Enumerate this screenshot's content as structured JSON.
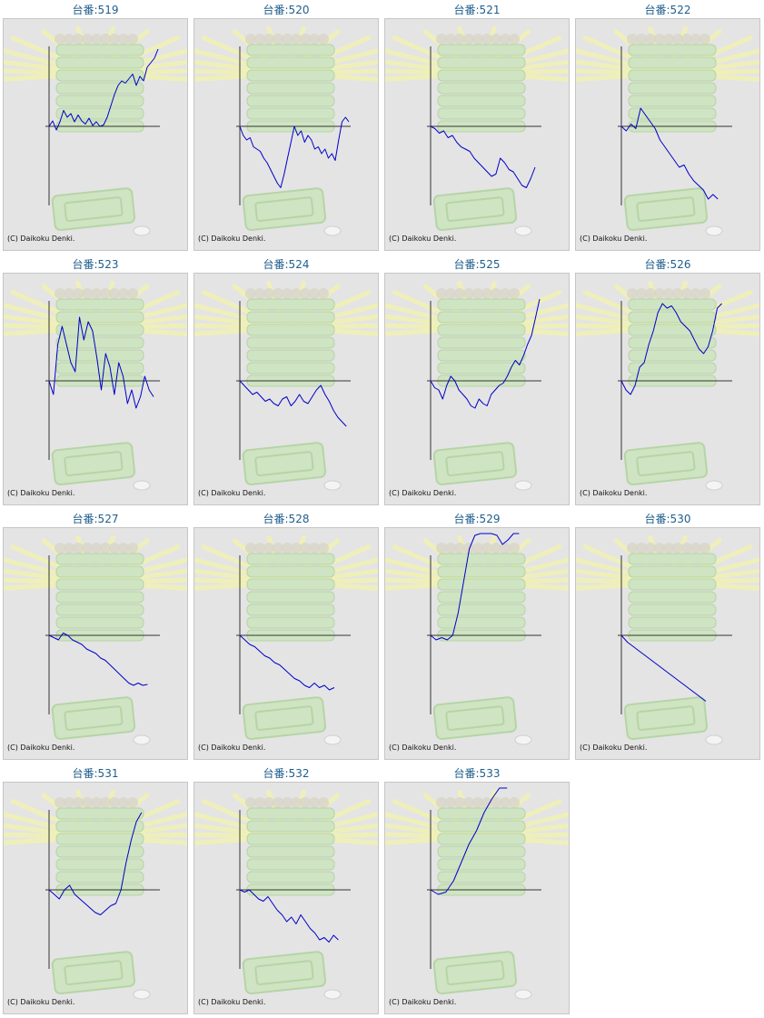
{
  "copyright": "(C) Daikoku Denki.",
  "colors": {
    "title": "#1f5e8c",
    "line": "#0000c8",
    "axis": "#333333",
    "background": "#e4e4e4"
  },
  "machines": [
    {
      "label": "台番:519",
      "series": [
        0.0,
        0.12,
        -0.08,
        0.1,
        0.35,
        0.2,
        0.28,
        0.1,
        0.25,
        0.12,
        0.05,
        0.18,
        0.02,
        0.1,
        0.0,
        0.03,
        0.2,
        0.45,
        0.7,
        0.9,
        1.0,
        0.95,
        1.05,
        1.15,
        0.9,
        1.1,
        1.0,
        1.3,
        1.4,
        1.5,
        1.7
      ]
    },
    {
      "label": "台番:520",
      "series": [
        0.0,
        -0.2,
        -0.3,
        -0.25,
        -0.45,
        -0.5,
        -0.55,
        -0.7,
        -0.8,
        -0.95,
        -1.1,
        -1.25,
        -1.35,
        -1.05,
        -0.7,
        -0.35,
        0.0,
        -0.2,
        -0.1,
        -0.35,
        -0.2,
        -0.3,
        -0.5,
        -0.45,
        -0.6,
        -0.5,
        -0.7,
        -0.6,
        -0.75,
        -0.3,
        0.1,
        0.2,
        0.1
      ]
    },
    {
      "label": "台番:521",
      "series": [
        0.0,
        -0.05,
        -0.15,
        -0.1,
        -0.25,
        -0.2,
        -0.35,
        -0.45,
        -0.5,
        -0.55,
        -0.7,
        -0.8,
        -0.9,
        -1.0,
        -1.1,
        -1.05,
        -0.7,
        -0.8,
        -0.95,
        -1.0,
        -1.15,
        -1.3,
        -1.35,
        -1.15,
        -0.9
      ]
    },
    {
      "label": "台番:522",
      "series": [
        0.0,
        -0.1,
        0.05,
        -0.05,
        0.4,
        0.25,
        0.1,
        -0.05,
        -0.3,
        -0.45,
        -0.6,
        -0.75,
        -0.9,
        -0.85,
        -1.05,
        -1.2,
        -1.3,
        -1.4,
        -1.6,
        -1.5,
        -1.6
      ]
    },
    {
      "label": "台番:523",
      "series": [
        0.0,
        -0.3,
        0.8,
        1.2,
        0.8,
        0.4,
        0.2,
        1.4,
        0.9,
        1.3,
        1.1,
        0.5,
        -0.2,
        0.6,
        0.3,
        -0.3,
        0.4,
        0.1,
        -0.5,
        -0.2,
        -0.6,
        -0.35,
        0.1,
        -0.2,
        -0.35
      ]
    },
    {
      "label": "台番:524",
      "series": [
        0.0,
        -0.1,
        -0.2,
        -0.3,
        -0.25,
        -0.35,
        -0.45,
        -0.4,
        -0.5,
        -0.55,
        -0.4,
        -0.35,
        -0.55,
        -0.45,
        -0.3,
        -0.45,
        -0.5,
        -0.35,
        -0.2,
        -0.1,
        -0.3,
        -0.45,
        -0.65,
        -0.8,
        -0.9,
        -1.0
      ]
    },
    {
      "label": "台番:525",
      "series": [
        0.0,
        -0.15,
        -0.2,
        -0.4,
        -0.1,
        0.1,
        0.0,
        -0.2,
        -0.3,
        -0.4,
        -0.55,
        -0.6,
        -0.4,
        -0.5,
        -0.55,
        -0.3,
        -0.2,
        -0.1,
        -0.05,
        0.1,
        0.3,
        0.45,
        0.35,
        0.55,
        0.8,
        1.0,
        1.4,
        1.8
      ]
    },
    {
      "label": "台番:526",
      "series": [
        0.0,
        -0.2,
        -0.3,
        -0.1,
        0.3,
        0.4,
        0.8,
        1.1,
        1.5,
        1.7,
        1.6,
        1.65,
        1.5,
        1.3,
        1.2,
        1.1,
        0.9,
        0.7,
        0.6,
        0.75,
        1.1,
        1.6,
        1.7
      ]
    },
    {
      "label": "台番:527",
      "series": [
        0.0,
        -0.05,
        -0.1,
        0.05,
        0.0,
        -0.1,
        -0.15,
        -0.2,
        -0.3,
        -0.35,
        -0.4,
        -0.5,
        -0.55,
        -0.65,
        -0.75,
        -0.85,
        -0.95,
        -1.05,
        -1.1,
        -1.05,
        -1.1,
        -1.08
      ]
    },
    {
      "label": "台番:528",
      "series": [
        0.0,
        -0.1,
        -0.2,
        -0.25,
        -0.35,
        -0.45,
        -0.5,
        -0.6,
        -0.65,
        -0.75,
        -0.85,
        -0.95,
        -1.0,
        -1.1,
        -1.15,
        -1.05,
        -1.15,
        -1.1,
        -1.2,
        -1.15
      ]
    },
    {
      "label": "台番:529",
      "series": [
        0.0,
        -0.1,
        -0.05,
        -0.1,
        0.0,
        0.5,
        1.2,
        1.9,
        2.2,
        2.5,
        2.3,
        2.4,
        2.2,
        2.0,
        2.1,
        2.3,
        2.6
      ]
    },
    {
      "label": "台番:530",
      "series": [
        0.0,
        -0.15,
        -0.25,
        -0.35,
        -0.45,
        -0.55,
        -0.65,
        -0.75,
        -0.85,
        -0.95,
        -1.05,
        -1.15,
        -1.25,
        -1.35,
        -1.45
      ]
    },
    {
      "label": "台番:531",
      "series": [
        0.0,
        -0.1,
        -0.2,
        0.0,
        0.1,
        -0.1,
        -0.2,
        -0.3,
        -0.4,
        -0.5,
        -0.55,
        -0.45,
        -0.35,
        -0.3,
        0.0,
        0.6,
        1.1,
        1.5,
        1.7
      ]
    },
    {
      "label": "台番:532",
      "series": [
        0.0,
        -0.05,
        0.0,
        -0.1,
        -0.2,
        -0.25,
        -0.15,
        -0.3,
        -0.45,
        -0.55,
        -0.7,
        -0.6,
        -0.75,
        -0.55,
        -0.7,
        -0.85,
        -0.95,
        -1.1,
        -1.05,
        -1.15,
        -1.0,
        -1.1
      ]
    },
    {
      "label": "台番:533",
      "series": [
        0.0,
        -0.1,
        -0.05,
        0.2,
        0.6,
        1.0,
        1.3,
        1.7,
        2.0,
        2.4,
        2.6
      ]
    }
  ]
}
